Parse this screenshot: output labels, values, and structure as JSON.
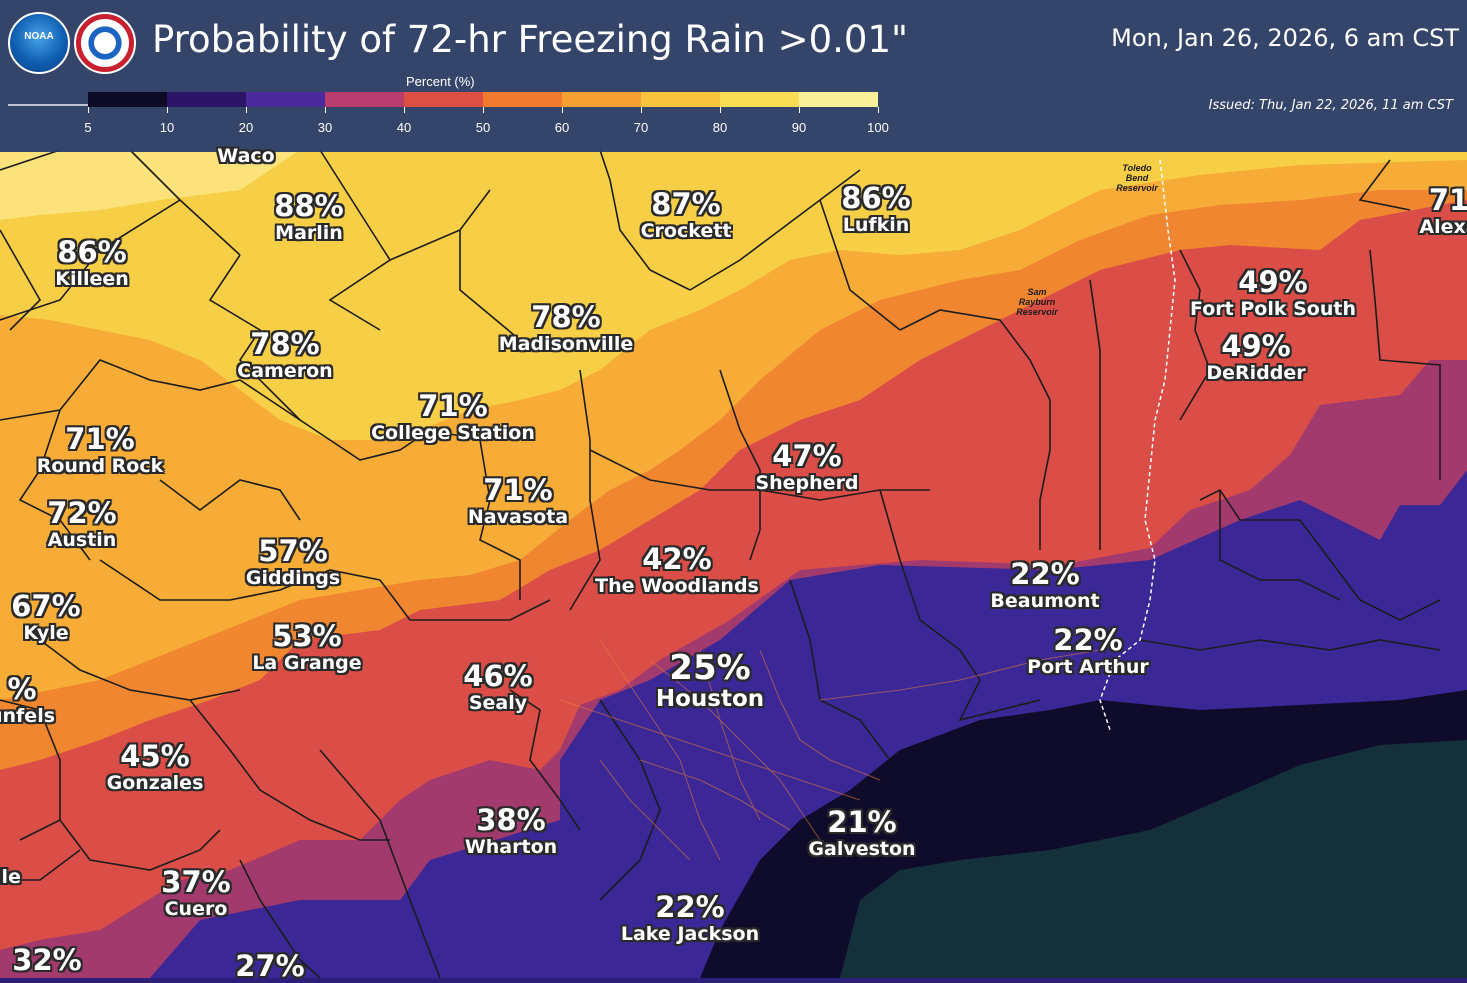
{
  "header": {
    "title": "Probability of 72-hr Freezing Rain >0.01\"",
    "valid_time": "Mon, Jan 26, 2026, 6 am CST",
    "issued": "Issued: Thu, Jan 22, 2026, 11 am CST",
    "logos": [
      {
        "name": "noaa-logo",
        "text": "NOAA"
      },
      {
        "name": "nws-logo",
        "text": "NATIONAL WEATHER SERVICE"
      }
    ]
  },
  "legend": {
    "title": "Percent (%)",
    "ticks": [
      "5",
      "10",
      "20",
      "30",
      "40",
      "50",
      "60",
      "70",
      "80",
      "90",
      "100"
    ],
    "colors": [
      "#0d0a26",
      "#2c1466",
      "#4a2a9c",
      "#b83c6c",
      "#dd4f45",
      "#f07a2e",
      "#f6a033",
      "#f8c43e",
      "#f8dd55",
      "#fbf09a"
    ]
  },
  "map": {
    "colors": {
      "water": "#14303a",
      "dark": "#0e0c2a",
      "purple": "#3b2796",
      "magenta": "#a23a6e",
      "red": "#db4e47",
      "orange": "#f0862f",
      "amber": "#f6ac36",
      "yellow": "#f7cf46",
      "pale": "#fbe27a",
      "boundary": "#1c1c1c"
    },
    "cities": [
      {
        "name": "Waco",
        "pct": "",
        "big": false
      },
      {
        "name": "Marlin",
        "pct": "88%",
        "big": false
      },
      {
        "name": "Killeen",
        "pct": "86%",
        "big": false
      },
      {
        "name": "Crockett",
        "pct": "87%",
        "big": false
      },
      {
        "name": "Lufkin",
        "pct": "86%",
        "big": false
      },
      {
        "name": "Alexa",
        "pct": "71",
        "big": false
      },
      {
        "name": "Fort Polk South",
        "pct": "49%",
        "big": false
      },
      {
        "name": "DeRidder",
        "pct": "49%",
        "big": false
      },
      {
        "name": "Madisonville",
        "pct": "78%",
        "big": false
      },
      {
        "name": "Cameron",
        "pct": "78%",
        "big": false
      },
      {
        "name": "College Station",
        "pct": "71%",
        "big": false
      },
      {
        "name": "Round Rock",
        "pct": "71%",
        "big": false
      },
      {
        "name": "Austin",
        "pct": "72%",
        "big": false
      },
      {
        "name": "Navasota",
        "pct": "71%",
        "big": false
      },
      {
        "name": "Shepherd",
        "pct": "47%",
        "big": false
      },
      {
        "name": "Giddings",
        "pct": "57%",
        "big": false
      },
      {
        "name": "The Woodlands",
        "pct": "42%",
        "big": false
      },
      {
        "name": "Beaumont",
        "pct": "22%",
        "big": false
      },
      {
        "name": "Port Arthur",
        "pct": "22%",
        "big": false
      },
      {
        "name": "Kyle",
        "pct": "67%",
        "big": false
      },
      {
        "name": "La Grange",
        "pct": "53%",
        "big": false
      },
      {
        "name": "Houston",
        "pct": "25%",
        "big": true
      },
      {
        "name": "Sealy",
        "pct": "46%",
        "big": false
      },
      {
        "name": "unfels",
        "pct": "%",
        "big": false
      },
      {
        "name": "Gonzales",
        "pct": "45%",
        "big": false
      },
      {
        "name": "Wharton",
        "pct": "38%",
        "big": false
      },
      {
        "name": "Galveston",
        "pct": "21%",
        "big": false
      },
      {
        "name": "Cuero",
        "pct": "37%",
        "big": false
      },
      {
        "name": "lle",
        "pct": "",
        "big": false
      },
      {
        "name": "Lake Jackson",
        "pct": "22%",
        "big": false
      },
      {
        "name": "",
        "pct": "32%",
        "big": false
      },
      {
        "name": "",
        "pct": "27%",
        "big": false
      }
    ],
    "reservoirs": [
      {
        "name": "Toledo Bend Reservoir"
      },
      {
        "name": "Sam Rayburn Reservoir"
      }
    ]
  }
}
